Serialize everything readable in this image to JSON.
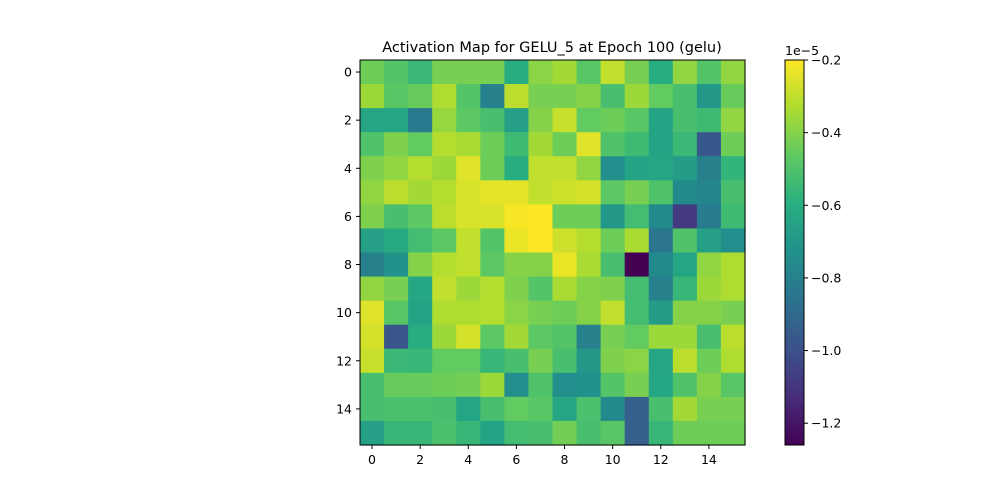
{
  "chart_data": {
    "type": "heatmap",
    "title": "Activation Map for GELU_5 at Epoch 100 (gelu)",
    "colormap": "viridis",
    "xticks": [
      "0",
      "2",
      "4",
      "6",
      "8",
      "10",
      "12",
      "14"
    ],
    "yticks": [
      "0",
      "2",
      "4",
      "6",
      "8",
      "10",
      "12",
      "14"
    ],
    "colorbar": {
      "offset_label": "1e−5",
      "min": -1.26,
      "max": -0.2,
      "ticks": [
        -0.2,
        -0.4,
        -0.6,
        -0.8,
        -1.0,
        -1.2
      ],
      "tick_labels": [
        "−0.2",
        "−0.4",
        "−0.6",
        "−0.8",
        "−1.0",
        "−1.2"
      ]
    },
    "values": [
      [
        -0.44,
        -0.49,
        -0.55,
        -0.42,
        -0.42,
        -0.42,
        -0.6,
        -0.39,
        -0.35,
        -0.48,
        -0.3,
        -0.42,
        -0.6,
        -0.38,
        -0.49,
        -0.38
      ],
      [
        -0.36,
        -0.48,
        -0.45,
        -0.33,
        -0.49,
        -0.8,
        -0.31,
        -0.42,
        -0.42,
        -0.4,
        -0.52,
        -0.36,
        -0.46,
        -0.52,
        -0.7,
        -0.45
      ],
      [
        -0.64,
        -0.64,
        -0.83,
        -0.37,
        -0.47,
        -0.52,
        -0.66,
        -0.4,
        -0.29,
        -0.46,
        -0.44,
        -0.48,
        -0.65,
        -0.52,
        -0.54,
        -0.38
      ],
      [
        -0.5,
        -0.41,
        -0.46,
        -0.32,
        -0.34,
        -0.44,
        -0.54,
        -0.35,
        -0.44,
        -0.25,
        -0.5,
        -0.54,
        -0.65,
        -0.55,
        -0.97,
        -0.44
      ],
      [
        -0.41,
        -0.38,
        -0.32,
        -0.36,
        -0.25,
        -0.44,
        -0.6,
        -0.3,
        -0.3,
        -0.38,
        -0.74,
        -0.65,
        -0.64,
        -0.68,
        -0.8,
        -0.57
      ],
      [
        -0.38,
        -0.31,
        -0.35,
        -0.32,
        -0.26,
        -0.24,
        -0.24,
        -0.3,
        -0.28,
        -0.27,
        -0.47,
        -0.42,
        -0.5,
        -0.76,
        -0.78,
        -0.52
      ],
      [
        -0.41,
        -0.52,
        -0.47,
        -0.31,
        -0.26,
        -0.26,
        -0.21,
        -0.2,
        -0.44,
        -0.44,
        -0.7,
        -0.53,
        -0.76,
        -1.08,
        -0.82,
        -0.54
      ],
      [
        -0.66,
        -0.62,
        -0.53,
        -0.47,
        -0.3,
        -0.49,
        -0.23,
        -0.2,
        -0.28,
        -0.32,
        -0.44,
        -0.34,
        -0.85,
        -0.5,
        -0.66,
        -0.74
      ],
      [
        -0.8,
        -0.72,
        -0.4,
        -0.32,
        -0.3,
        -0.47,
        -0.4,
        -0.4,
        -0.23,
        -0.34,
        -0.52,
        -1.26,
        -0.76,
        -0.64,
        -0.38,
        -0.33
      ],
      [
        -0.38,
        -0.42,
        -0.63,
        -0.3,
        -0.36,
        -0.32,
        -0.41,
        -0.49,
        -0.34,
        -0.4,
        -0.41,
        -0.53,
        -0.8,
        -0.56,
        -0.36,
        -0.33
      ],
      [
        -0.25,
        -0.48,
        -0.65,
        -0.33,
        -0.33,
        -0.32,
        -0.39,
        -0.42,
        -0.44,
        -0.4,
        -0.3,
        -0.53,
        -0.68,
        -0.4,
        -0.4,
        -0.42
      ],
      [
        -0.27,
        -0.98,
        -0.6,
        -0.36,
        -0.27,
        -0.47,
        -0.35,
        -0.47,
        -0.49,
        -0.8,
        -0.42,
        -0.46,
        -0.36,
        -0.36,
        -0.52,
        -0.31
      ],
      [
        -0.29,
        -0.55,
        -0.56,
        -0.46,
        -0.46,
        -0.56,
        -0.52,
        -0.42,
        -0.52,
        -0.7,
        -0.41,
        -0.39,
        -0.64,
        -0.31,
        -0.44,
        -0.33
      ],
      [
        -0.52,
        -0.45,
        -0.45,
        -0.44,
        -0.43,
        -0.36,
        -0.74,
        -0.5,
        -0.74,
        -0.73,
        -0.49,
        -0.42,
        -0.63,
        -0.5,
        -0.4,
        -0.48
      ],
      [
        -0.52,
        -0.51,
        -0.51,
        -0.52,
        -0.64,
        -0.52,
        -0.46,
        -0.48,
        -0.64,
        -0.51,
        -0.76,
        -0.94,
        -0.52,
        -0.35,
        -0.42,
        -0.42
      ],
      [
        -0.66,
        -0.56,
        -0.56,
        -0.51,
        -0.56,
        -0.65,
        -0.53,
        -0.52,
        -0.43,
        -0.52,
        -0.48,
        -0.94,
        -0.56,
        -0.44,
        -0.44,
        -0.44
      ]
    ]
  }
}
